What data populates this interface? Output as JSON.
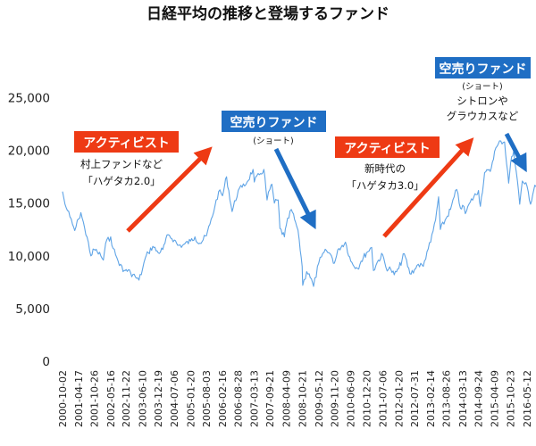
{
  "chart_data": {
    "type": "line",
    "title": "日経平均の推移と登場するファンド",
    "xlabel": "",
    "ylabel": "",
    "ylim": [
      0,
      27500
    ],
    "yticks": [
      0,
      5000,
      10000,
      15000,
      20000,
      25000
    ],
    "ytick_labels": [
      "0",
      "5,000",
      "10,000",
      "15,000",
      "20,000",
      "25,000"
    ],
    "xtick_labels": [
      "2000-10-02",
      "2001-04-17",
      "2001-10-26",
      "2002-05-16",
      "2002-11-22",
      "2003-06-10",
      "2003-12-19",
      "2004-07-06",
      "2005-01-20",
      "2005-08-03",
      "2006-02-16",
      "2006-08-28",
      "2007-03-13",
      "2007-09-21",
      "2008-04-09",
      "2008-10-21",
      "2009-05-12",
      "2009-11-20",
      "2010-06-09",
      "2010-12-20",
      "2011-07-06",
      "2012-01-20",
      "2012-07-31",
      "2013-02-14",
      "2013-08-26",
      "2014-03-13",
      "2014-09-24",
      "2015-04-09",
      "2015-10-23",
      "2016-05-12"
    ],
    "grid": false,
    "series": [
      {
        "color": "#5fa4e6",
        "points": [
          [
            "2000-10-02",
            16100
          ],
          [
            "2000-11-01",
            14900
          ],
          [
            "2000-12-01",
            14300
          ],
          [
            "2001-01-01",
            13700
          ],
          [
            "2001-02-01",
            13000
          ],
          [
            "2001-03-01",
            12400
          ],
          [
            "2001-04-17",
            13500
          ],
          [
            "2001-05-15",
            14100
          ],
          [
            "2001-06-15",
            13200
          ],
          [
            "2001-07-15",
            12000
          ],
          [
            "2001-08-15",
            11300
          ],
          [
            "2001-09-15",
            10000
          ],
          [
            "2001-10-26",
            10600
          ],
          [
            "2001-12-01",
            10400
          ],
          [
            "2002-01-15",
            10000
          ],
          [
            "2002-02-15",
            9600
          ],
          [
            "2002-03-15",
            11200
          ],
          [
            "2002-05-16",
            11800
          ],
          [
            "2002-06-15",
            10700
          ],
          [
            "2002-07-15",
            10100
          ],
          [
            "2002-08-15",
            9500
          ],
          [
            "2002-09-15",
            9200
          ],
          [
            "2002-10-15",
            8500
          ],
          [
            "2002-11-22",
            8700
          ],
          [
            "2003-01-15",
            8400
          ],
          [
            "2003-03-15",
            8000
          ],
          [
            "2003-04-28",
            7700
          ],
          [
            "2003-06-10",
            8700
          ],
          [
            "2003-07-15",
            9800
          ],
          [
            "2003-08-20",
            10300
          ],
          [
            "2003-10-15",
            10900
          ],
          [
            "2003-12-19",
            10300
          ],
          [
            "2004-02-15",
            10600
          ],
          [
            "2004-04-20",
            12000
          ],
          [
            "2004-07-06",
            11500
          ],
          [
            "2004-08-15",
            11000
          ],
          [
            "2004-10-15",
            11000
          ],
          [
            "2005-01-20",
            11400
          ],
          [
            "2005-03-15",
            11800
          ],
          [
            "2005-05-15",
            11200
          ],
          [
            "2005-08-03",
            11900
          ],
          [
            "2005-09-15",
            13000
          ],
          [
            "2005-11-15",
            14700
          ],
          [
            "2005-12-31",
            16100
          ],
          [
            "2006-02-16",
            15700
          ],
          [
            "2006-04-07",
            17500
          ],
          [
            "2006-06-14",
            14200
          ],
          [
            "2006-08-28",
            16200
          ],
          [
            "2006-10-15",
            16500
          ],
          [
            "2006-12-15",
            17000
          ],
          [
            "2007-02-26",
            18200
          ],
          [
            "2007-03-13",
            17000
          ],
          [
            "2007-05-15",
            17700
          ],
          [
            "2007-07-09",
            18200
          ],
          [
            "2007-08-17",
            15300
          ],
          [
            "2007-09-21",
            16300
          ],
          [
            "2007-10-15",
            16800
          ],
          [
            "2007-11-15",
            15000
          ],
          [
            "2007-12-31",
            15300
          ],
          [
            "2008-01-22",
            12600
          ],
          [
            "2008-03-17",
            11800
          ],
          [
            "2008-04-09",
            12900
          ],
          [
            "2008-06-10",
            14400
          ],
          [
            "2008-08-15",
            12800
          ],
          [
            "2008-09-15",
            11500
          ],
          [
            "2008-10-21",
            9000
          ],
          [
            "2008-10-28",
            7200
          ],
          [
            "2008-12-15",
            8500
          ],
          [
            "2009-01-15",
            8300
          ],
          [
            "2009-03-10",
            7100
          ],
          [
            "2009-05-12",
            9300
          ],
          [
            "2009-06-15",
            9900
          ],
          [
            "2009-08-15",
            10500
          ],
          [
            "2009-10-15",
            10000
          ],
          [
            "2009-11-20",
            9300
          ],
          [
            "2010-01-15",
            10700
          ],
          [
            "2010-04-05",
            11300
          ],
          [
            "2010-06-09",
            9500
          ],
          [
            "2010-08-31",
            8800
          ],
          [
            "2010-10-15",
            9500
          ],
          [
            "2010-12-20",
            10300
          ],
          [
            "2011-02-21",
            10800
          ],
          [
            "2011-03-15",
            8600
          ],
          [
            "2011-05-15",
            9600
          ],
          [
            "2011-07-06",
            10100
          ],
          [
            "2011-08-15",
            8900
          ],
          [
            "2011-10-15",
            8700
          ],
          [
            "2011-11-25",
            8200
          ],
          [
            "2012-01-20",
            8800
          ],
          [
            "2012-03-27",
            10200
          ],
          [
            "2012-06-04",
            8300
          ],
          [
            "2012-07-31",
            8700
          ],
          [
            "2012-09-15",
            9200
          ],
          [
            "2012-11-15",
            9000
          ],
          [
            "2012-12-31",
            10400
          ],
          [
            "2013-02-14",
            11300
          ],
          [
            "2013-04-15",
            13400
          ],
          [
            "2013-05-22",
            15600
          ],
          [
            "2013-06-13",
            12500
          ],
          [
            "2013-08-26",
            13600
          ],
          [
            "2013-10-15",
            14400
          ],
          [
            "2013-12-30",
            16300
          ],
          [
            "2014-02-15",
            14500
          ],
          [
            "2014-03-13",
            14800
          ],
          [
            "2014-04-15",
            14000
          ],
          [
            "2014-06-15",
            15100
          ],
          [
            "2014-09-24",
            16200
          ],
          [
            "2014-10-17",
            14700
          ],
          [
            "2014-12-08",
            17900
          ],
          [
            "2015-02-15",
            18000
          ],
          [
            "2015-04-09",
            19900
          ],
          [
            "2015-06-24",
            20900
          ],
          [
            "2015-08-10",
            20800
          ],
          [
            "2015-09-29",
            16900
          ],
          [
            "2015-10-23",
            18800
          ],
          [
            "2015-12-01",
            20000
          ],
          [
            "2016-01-15",
            17100
          ],
          [
            "2016-02-12",
            14900
          ],
          [
            "2016-03-15",
            17100
          ],
          [
            "2016-05-12",
            16600
          ],
          [
            "2016-06-24",
            14900
          ],
          [
            "2016-08-15",
            16700
          ],
          [
            "2016-09-30",
            16500
          ]
        ]
      }
    ],
    "annotations": {
      "activist1": {
        "label": "アクティビスト",
        "lines": [
          "村上ファンドなど",
          "「ハゲタカ2.0」"
        ],
        "color": "#ee3a14"
      },
      "short1": {
        "label": "空売りファンド",
        "lines": [
          "(ショート)"
        ],
        "color": "#1f6ec4"
      },
      "activist2": {
        "label": "アクティビスト",
        "lines": [
          "新時代の",
          "「ハゲタカ3.0」"
        ],
        "color": "#ee3a14"
      },
      "short2": {
        "label": "空売りファンド",
        "lines": [
          "(ショート)",
          "シトロンや",
          "グラウカスなど"
        ],
        "color": "#1f6ec4"
      }
    }
  }
}
